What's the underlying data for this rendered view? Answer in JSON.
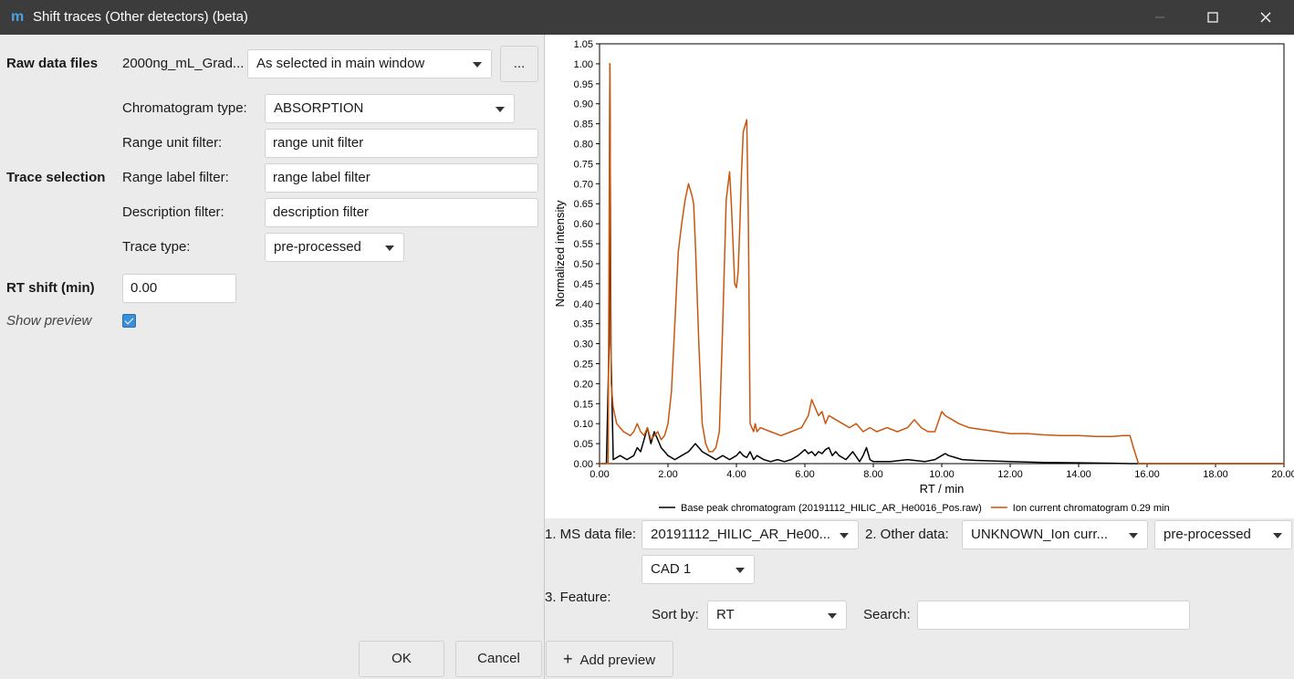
{
  "window": {
    "title": "Shift traces (Other detectors) (beta)",
    "app_icon_glyph": "m"
  },
  "left": {
    "raw_data_files_label": "Raw data files",
    "raw_data_file_name": "2000ng_mL_Grad...",
    "raw_data_selection": "As selected in main window",
    "more_button": "...",
    "chromatogram_type_label": "Chromatogram type:",
    "chromatogram_type": "ABSORPTION",
    "range_unit_filter_label": "Range unit filter:",
    "range_unit_filter": "range unit filter",
    "trace_selection_label": "Trace selection",
    "range_label_filter_label": "Range label filter:",
    "range_label_filter": "range label filter",
    "description_filter_label": "Description filter:",
    "description_filter": "description filter",
    "trace_type_label": "Trace type:",
    "trace_type": "pre-processed",
    "rt_shift_label": "RT shift (min)",
    "rt_shift_value": "0.00",
    "show_preview_label": "Show preview",
    "show_preview_checked": true
  },
  "buttons": {
    "ok": "OK",
    "cancel": "Cancel",
    "add_preview": "Add preview"
  },
  "right": {
    "ms_data_file_label": "1. MS data file:",
    "ms_data_file": "20191112_HILIC_AR_He00...",
    "other_data_label": "2. Other data:",
    "other_data": "UNKNOWN_Ion curr...",
    "other_data_type": "pre-processed",
    "cad": "CAD 1",
    "feature_label": "3. Feature:",
    "sort_by_label": "Sort by:",
    "sort_by": "RT",
    "search_label": "Search:",
    "search_value": ""
  },
  "chart_data": {
    "type": "line",
    "xlabel": "RT / min",
    "ylabel": "Normalized intensity",
    "xlim": [
      0,
      20
    ],
    "ylim": [
      0,
      1.05
    ],
    "x_ticks": [
      "0.00",
      "2.00",
      "4.00",
      "6.00",
      "8.00",
      "10.00",
      "12.00",
      "14.00",
      "16.00",
      "18.00",
      "20.00"
    ],
    "y_ticks": [
      "0.00",
      "0.05",
      "0.10",
      "0.15",
      "0.20",
      "0.25",
      "0.30",
      "0.35",
      "0.40",
      "0.45",
      "0.50",
      "0.55",
      "0.60",
      "0.65",
      "0.70",
      "0.75",
      "0.80",
      "0.85",
      "0.90",
      "0.95",
      "1.00",
      "1.05"
    ],
    "legend_position": "bottom",
    "series": [
      {
        "name": "Base peak chromatogram (20191112_HILIC_AR_He0016_Pos.raw)",
        "color": "#000000",
        "x": [
          0.0,
          0.2,
          0.28,
          0.3,
          0.33,
          0.4,
          0.6,
          0.8,
          1.0,
          1.1,
          1.2,
          1.3,
          1.4,
          1.5,
          1.6,
          1.7,
          1.8,
          1.9,
          2.0,
          2.2,
          2.4,
          2.6,
          2.7,
          2.8,
          2.9,
          3.0,
          3.2,
          3.4,
          3.6,
          3.8,
          4.0,
          4.1,
          4.2,
          4.3,
          4.4,
          4.5,
          4.6,
          4.8,
          5.0,
          5.2,
          5.4,
          5.6,
          5.8,
          6.0,
          6.1,
          6.2,
          6.3,
          6.4,
          6.5,
          6.6,
          6.7,
          6.8,
          6.9,
          7.0,
          7.2,
          7.4,
          7.6,
          7.7,
          7.8,
          7.9,
          8.0,
          8.5,
          9.0,
          9.5,
          9.8,
          10.0,
          10.1,
          10.2,
          10.4,
          10.6,
          11.0,
          12.0,
          13.0,
          14.0,
          15.0,
          15.5,
          16.0,
          20.0
        ],
        "y": [
          0.0,
          0.0,
          0.3,
          1.0,
          0.3,
          0.01,
          0.02,
          0.01,
          0.02,
          0.04,
          0.03,
          0.06,
          0.09,
          0.05,
          0.08,
          0.06,
          0.04,
          0.03,
          0.02,
          0.01,
          0.02,
          0.03,
          0.04,
          0.05,
          0.04,
          0.03,
          0.02,
          0.01,
          0.02,
          0.01,
          0.02,
          0.03,
          0.02,
          0.015,
          0.03,
          0.01,
          0.02,
          0.01,
          0.005,
          0.01,
          0.005,
          0.01,
          0.02,
          0.035,
          0.025,
          0.03,
          0.02,
          0.03,
          0.025,
          0.035,
          0.04,
          0.02,
          0.03,
          0.02,
          0.01,
          0.03,
          0.005,
          0.02,
          0.04,
          0.01,
          0.005,
          0.005,
          0.01,
          0.005,
          0.01,
          0.02,
          0.025,
          0.02,
          0.015,
          0.01,
          0.008,
          0.005,
          0.003,
          0.002,
          0.001,
          0.0,
          0.0,
          0.0
        ]
      },
      {
        "name": "Ion current chromatogram 0.29 min",
        "color": "#c8570d",
        "x": [
          0.0,
          0.25,
          0.3,
          0.34,
          0.4,
          0.5,
          0.7,
          0.9,
          1.0,
          1.1,
          1.2,
          1.3,
          1.4,
          1.5,
          1.6,
          1.7,
          1.8,
          1.9,
          2.0,
          2.1,
          2.2,
          2.3,
          2.4,
          2.5,
          2.6,
          2.7,
          2.75,
          2.8,
          2.9,
          3.0,
          3.1,
          3.2,
          3.3,
          3.4,
          3.5,
          3.6,
          3.7,
          3.8,
          3.85,
          3.9,
          3.95,
          4.0,
          4.05,
          4.1,
          4.15,
          4.2,
          4.3,
          4.35,
          4.4,
          4.5,
          4.55,
          4.6,
          4.7,
          5.0,
          5.3,
          5.6,
          5.9,
          6.1,
          6.2,
          6.3,
          6.4,
          6.5,
          6.6,
          6.7,
          6.9,
          7.1,
          7.3,
          7.5,
          7.7,
          7.9,
          8.1,
          8.4,
          8.7,
          9.0,
          9.2,
          9.4,
          9.6,
          9.8,
          10.0,
          10.1,
          10.3,
          10.5,
          10.8,
          11.2,
          11.6,
          12.0,
          12.5,
          13.0,
          13.5,
          14.0,
          14.5,
          15.0,
          15.3,
          15.5,
          15.6,
          15.75,
          16.0,
          20.0
        ],
        "y": [
          0.0,
          0.0,
          1.0,
          0.2,
          0.14,
          0.1,
          0.08,
          0.07,
          0.08,
          0.1,
          0.08,
          0.07,
          0.09,
          0.06,
          0.07,
          0.08,
          0.06,
          0.07,
          0.1,
          0.18,
          0.35,
          0.53,
          0.6,
          0.66,
          0.7,
          0.67,
          0.65,
          0.55,
          0.3,
          0.1,
          0.05,
          0.03,
          0.03,
          0.04,
          0.08,
          0.35,
          0.66,
          0.73,
          0.65,
          0.55,
          0.45,
          0.44,
          0.48,
          0.6,
          0.73,
          0.83,
          0.86,
          0.6,
          0.1,
          0.08,
          0.1,
          0.08,
          0.09,
          0.08,
          0.07,
          0.08,
          0.09,
          0.12,
          0.16,
          0.14,
          0.12,
          0.13,
          0.1,
          0.12,
          0.11,
          0.1,
          0.09,
          0.1,
          0.08,
          0.09,
          0.08,
          0.09,
          0.08,
          0.09,
          0.11,
          0.09,
          0.08,
          0.08,
          0.13,
          0.12,
          0.11,
          0.1,
          0.09,
          0.085,
          0.08,
          0.075,
          0.075,
          0.072,
          0.07,
          0.07,
          0.068,
          0.068,
          0.07,
          0.07,
          0.04,
          0.0,
          0.0,
          0.0
        ]
      }
    ]
  }
}
